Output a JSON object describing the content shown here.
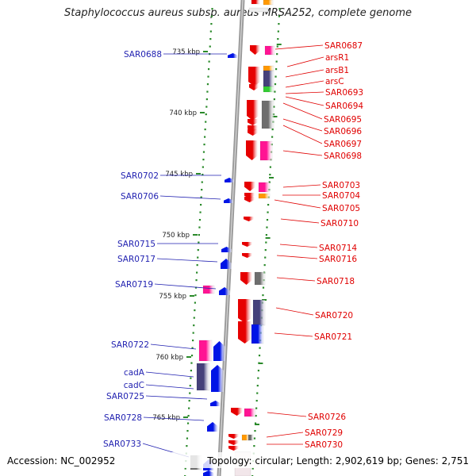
{
  "title": "Staphylococcus aureus subsp. aureus MRSA252, complete genome",
  "accession": "Accession: NC_002952",
  "summary": "Topology: circular; Length: 2,902,619 bp; Genes: 2,751",
  "colors": {
    "backbone": "#9a9a9a",
    "ticks": "#2a8a2a",
    "forward_strand": "#e60000",
    "reverse_strand": "#0014e6",
    "orange": "#ff9900",
    "magenta": "#ff1493",
    "slate": "#45407a",
    "gray": "#6e6e6e",
    "green": "#33cc33",
    "label_left": "#1f1fb0",
    "label_right": "#e00000"
  },
  "ruler_labels": [
    "735 kbp",
    "740 kbp",
    "745 kbp",
    "750 kbp",
    "755 kbp",
    "760 kbp",
    "765 kbp"
  ],
  "left_labels": [
    "SAR0688",
    "SAR0702",
    "SAR0706",
    "SAR0715",
    "SAR0717",
    "SAR0719",
    "SAR0722",
    "cadA",
    "cadC",
    "SAR0725",
    "SAR0728",
    "SAR0733"
  ],
  "right_labels": [
    "SAR0687",
    "arsR1",
    "arsB1",
    "arsC",
    "SAR0693",
    "SAR0694",
    "SAR0695",
    "SAR0696",
    "SAR0697",
    "SAR0698",
    "SAR0703",
    "SAR0704",
    "SAR0705",
    "SAR0710",
    "SAR0714",
    "SAR0716",
    "SAR0718",
    "SAR0720",
    "SAR0721",
    "SAR0726",
    "SAR0729",
    "SAR0730"
  ]
}
